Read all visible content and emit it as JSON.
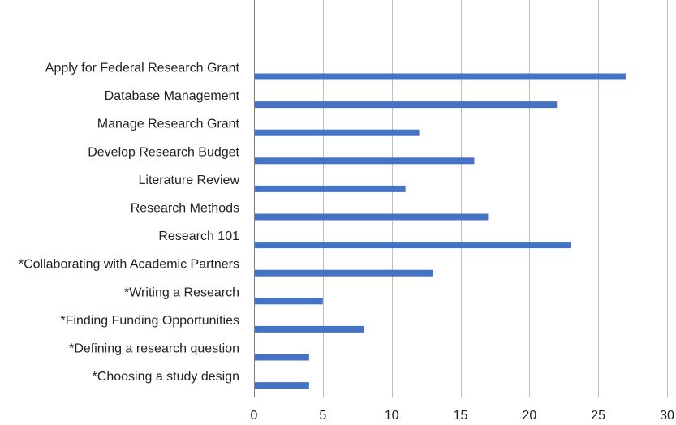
{
  "chart_data": {
    "type": "bar",
    "orientation": "horizontal",
    "title": "",
    "xlabel": "",
    "ylabel": "",
    "categories": [
      "Apply for Federal Research Grant",
      "Database Management",
      "Manage Research Grant",
      "Develop Research Budget",
      "Literature Review",
      "Research Methods",
      "Research 101",
      "*Collaborating with Academic Partners",
      "*Writing a Research",
      "*Finding Funding Opportunities",
      "*Defining a research question",
      "*Choosing a study design"
    ],
    "values": [
      27,
      22,
      12,
      16,
      11,
      17,
      23,
      13,
      5,
      8,
      4,
      4
    ],
    "xlim": [
      0,
      30
    ],
    "xticks": [
      0,
      5,
      10,
      15,
      20,
      25,
      30
    ],
    "grid": "vertical",
    "legend": "none",
    "colors": {
      "bar": "#4472C4",
      "grid": "#BFBFBF",
      "axis": "#7F7F7F"
    }
  }
}
